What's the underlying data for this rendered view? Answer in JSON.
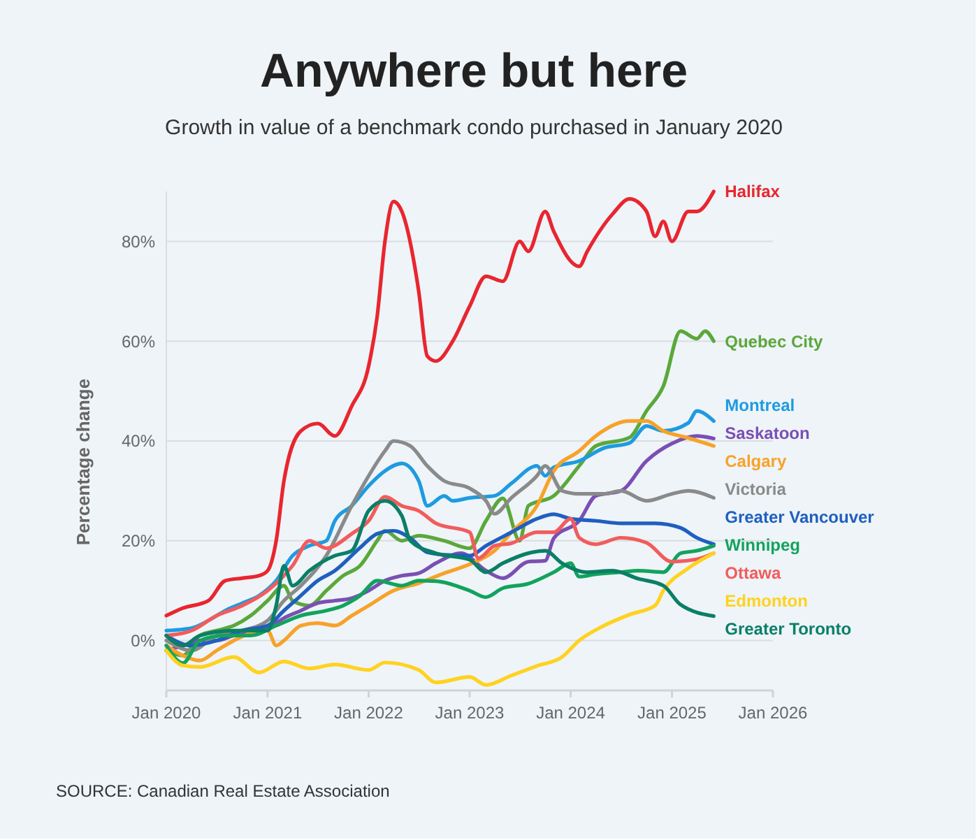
{
  "chart_data": {
    "type": "line",
    "title": "Anywhere but here",
    "subtitle": "Growth in value of a benchmark condo purchased in January 2020",
    "ylabel": "Percentage change",
    "annotations": [
      "SOURCE: Canadian Real Estate Association"
    ],
    "xlim": [
      "2020-01",
      "2026-01"
    ],
    "xticks": [
      {
        "value": "2020-01",
        "label": "Jan 2020"
      },
      {
        "value": "2021-01",
        "label": "Jan 2021"
      },
      {
        "value": "2022-01",
        "label": "Jan 2022"
      },
      {
        "value": "2023-01",
        "label": "Jan 2023"
      },
      {
        "value": "2024-01",
        "label": "Jan 2024"
      },
      {
        "value": "2025-01",
        "label": "Jan 2025"
      },
      {
        "value": "2026-01",
        "label": "Jan 2026"
      }
    ],
    "ylim": [
      -10,
      90
    ],
    "yticks": [
      {
        "value": 0,
        "label": "0%"
      },
      {
        "value": 20,
        "label": "20%"
      },
      {
        "value": 40,
        "label": "40%"
      },
      {
        "value": 60,
        "label": "60%"
      },
      {
        "value": 80,
        "label": "80%"
      }
    ],
    "grid": "y",
    "marker": "none",
    "line_style": "solid",
    "series": [
      {
        "name": "Halifax",
        "color": "#e8262f",
        "x": [
          "2020-01",
          "2020-03",
          "2020-06",
          "2020-08",
          "2020-10",
          "2020-12",
          "2021-01",
          "2021-02",
          "2021-03",
          "2021-05",
          "2021-07",
          "2021-09",
          "2021-11",
          "2022-01",
          "2022-02",
          "2022-03",
          "2022-04",
          "2022-05",
          "2022-07",
          "2022-08",
          "2022-09",
          "2022-11",
          "2023-01",
          "2023-03",
          "2023-05",
          "2023-07",
          "2023-08",
          "2023-10",
          "2023-11",
          "2024-02",
          "2024-03",
          "2024-06",
          "2024-08",
          "2024-10",
          "2024-11",
          "2024-12",
          "2025-01",
          "2025-03",
          "2025-04",
          "2025-06"
        ],
        "values": [
          5,
          6.5,
          8,
          12,
          12.5,
          13,
          14,
          20,
          32,
          42,
          43.5,
          41,
          47,
          55,
          65,
          80,
          88,
          86,
          70,
          57,
          56,
          60,
          67,
          73,
          72,
          80,
          78,
          86,
          82,
          75,
          78,
          85.5,
          88.5,
          86,
          81,
          84,
          80,
          86,
          86,
          90
        ]
      },
      {
        "name": "Quebec City",
        "color": "#5ba83a",
        "x": [
          "2020-01",
          "2020-03",
          "2020-05",
          "2020-07",
          "2020-09",
          "2020-11",
          "2021-01",
          "2021-03",
          "2021-04",
          "2021-06",
          "2021-08",
          "2021-10",
          "2021-12",
          "2022-02",
          "2022-03",
          "2022-05",
          "2022-07",
          "2022-10",
          "2023-01",
          "2023-03",
          "2023-05",
          "2023-07",
          "2023-08",
          "2023-11",
          "2024-02",
          "2024-04",
          "2024-08",
          "2024-10",
          "2024-12",
          "2025-02",
          "2025-04",
          "2025-05",
          "2025-06"
        ],
        "values": [
          -2,
          -3,
          1,
          2,
          3,
          5,
          8,
          11,
          8,
          7,
          10,
          13,
          15,
          20,
          22,
          20,
          21,
          20,
          18.5,
          24,
          28.5,
          20,
          27,
          29,
          35,
          39,
          40.7,
          46,
          51,
          62,
          60.5,
          62,
          60
        ]
      },
      {
        "name": "Montreal",
        "color": "#1e9be0",
        "x": [
          "2020-01",
          "2020-04",
          "2020-06",
          "2020-08",
          "2020-10",
          "2020-12",
          "2021-02",
          "2021-04",
          "2021-06",
          "2021-08",
          "2021-09",
          "2021-11",
          "2022-01",
          "2022-03",
          "2022-05",
          "2022-07",
          "2022-08",
          "2022-10",
          "2022-11",
          "2023-01",
          "2023-04",
          "2023-06",
          "2023-09",
          "2023-10",
          "2023-11",
          "2024-02",
          "2024-05",
          "2024-08",
          "2024-10",
          "2024-12",
          "2025-03",
          "2025-04",
          "2025-06"
        ],
        "values": [
          2,
          2.5,
          4,
          6,
          7.5,
          9,
          12,
          17,
          19,
          20,
          24,
          27,
          31,
          34,
          35.5,
          32,
          27,
          29,
          28,
          28.6,
          29,
          31.5,
          35,
          33,
          34.7,
          36,
          38.6,
          39.6,
          43,
          42,
          43.6,
          46,
          44
        ]
      },
      {
        "name": "Saskatoon",
        "color": "#7b4fb3",
        "x": [
          "2020-01",
          "2020-03",
          "2020-05",
          "2020-07",
          "2020-09",
          "2020-11",
          "2021-01",
          "2021-03",
          "2021-05",
          "2021-07",
          "2021-09",
          "2021-11",
          "2022-01",
          "2022-03",
          "2022-05",
          "2022-07",
          "2022-09",
          "2022-12",
          "2023-03",
          "2023-05",
          "2023-08",
          "2023-10",
          "2023-11",
          "2024-02",
          "2024-04",
          "2024-07",
          "2024-10",
          "2025-01",
          "2025-04",
          "2025-06"
        ],
        "values": [
          -2,
          -1,
          0,
          0,
          1,
          1.5,
          2.5,
          4.5,
          6,
          7.5,
          8,
          8.5,
          10,
          12,
          13,
          13.5,
          15.5,
          17.5,
          14,
          12.5,
          15.8,
          16,
          20.5,
          24,
          29,
          30,
          36,
          39.5,
          41,
          40.5
        ]
      },
      {
        "name": "Calgary",
        "color": "#f7a229",
        "x": [
          "2020-01",
          "2020-03",
          "2020-05",
          "2020-07",
          "2020-09",
          "2020-11",
          "2021-01",
          "2021-02",
          "2021-03",
          "2021-05",
          "2021-07",
          "2021-09",
          "2021-11",
          "2022-01",
          "2022-04",
          "2022-07",
          "2022-10",
          "2023-01",
          "2023-04",
          "2023-06",
          "2023-09",
          "2023-11",
          "2024-02",
          "2024-04",
          "2024-08",
          "2024-10",
          "2024-12",
          "2025-03",
          "2025-06"
        ],
        "values": [
          -1,
          -3,
          -4,
          -2,
          0,
          1.5,
          2,
          -1,
          0,
          3,
          3.5,
          3,
          5,
          7,
          10,
          11.5,
          13.5,
          15.3,
          18,
          21.7,
          27,
          34,
          38,
          41,
          44,
          44,
          42,
          40.6,
          39
        ]
      },
      {
        "name": "Victoria",
        "color": "#8a8a8a",
        "x": [
          "2020-01",
          "2020-04",
          "2020-07",
          "2020-10",
          "2021-01",
          "2021-03",
          "2021-05",
          "2021-08",
          "2021-11",
          "2022-01",
          "2022-03",
          "2022-04",
          "2022-06",
          "2022-08",
          "2022-10",
          "2023-01",
          "2023-03",
          "2023-04",
          "2023-06",
          "2023-09",
          "2023-10",
          "2023-12",
          "2024-02",
          "2024-05",
          "2024-07",
          "2024-10",
          "2025-01",
          "2025-03",
          "2025-06"
        ],
        "values": [
          0,
          -2,
          1,
          2,
          4,
          8,
          11,
          17,
          27,
          33,
          38,
          40,
          39,
          35,
          32,
          30.5,
          28,
          25.4,
          28.6,
          33,
          35,
          30,
          29.4,
          29.4,
          30,
          28,
          29.4,
          30,
          28.6
        ]
      },
      {
        "name": "Greater Vancouver",
        "color": "#1f5fbf",
        "x": [
          "2020-01",
          "2020-04",
          "2020-07",
          "2020-10",
          "2021-01",
          "2021-03",
          "2021-05",
          "2021-07",
          "2021-09",
          "2021-12",
          "2022-02",
          "2022-04",
          "2022-06",
          "2022-08",
          "2022-10",
          "2023-01",
          "2023-03",
          "2023-06",
          "2023-09",
          "2023-11",
          "2024-01",
          "2024-04",
          "2024-07",
          "2024-11",
          "2025-02",
          "2025-04",
          "2025-06"
        ],
        "values": [
          1,
          -1,
          0,
          2,
          3,
          6,
          9,
          12,
          14,
          18.6,
          21.4,
          22,
          20.5,
          17.7,
          17.2,
          17,
          19,
          21.7,
          24.4,
          25.3,
          24.4,
          24,
          23.5,
          23.5,
          22.6,
          20.6,
          19.3
        ]
      },
      {
        "name": "Winnipeg",
        "color": "#12a35c",
        "x": [
          "2020-01",
          "2020-03",
          "2020-05",
          "2020-08",
          "2020-11",
          "2021-02",
          "2021-05",
          "2021-08",
          "2021-10",
          "2021-12",
          "2022-02",
          "2022-05",
          "2022-07",
          "2022-09",
          "2023-01",
          "2023-03",
          "2023-05",
          "2023-08",
          "2023-11",
          "2024-01",
          "2024-02",
          "2024-04",
          "2024-07",
          "2024-09",
          "2024-12",
          "2025-02",
          "2025-04",
          "2025-06"
        ],
        "values": [
          -1,
          -4.5,
          0,
          1,
          1,
          3,
          5,
          6,
          7,
          9,
          12,
          11,
          12,
          11.9,
          10,
          8.7,
          10.5,
          11.4,
          13.7,
          15.5,
          12.8,
          13.3,
          13.7,
          14,
          13.7,
          17.5,
          18,
          19
        ]
      },
      {
        "name": "Ottawa",
        "color": "#f25c5c",
        "x": [
          "2020-01",
          "2020-04",
          "2020-07",
          "2020-10",
          "2021-01",
          "2021-04",
          "2021-06",
          "2021-08",
          "2021-11",
          "2022-01",
          "2022-03",
          "2022-05",
          "2022-07",
          "2022-09",
          "2023-01",
          "2023-02",
          "2023-04",
          "2023-06",
          "2023-09",
          "2023-11",
          "2024-01",
          "2024-02",
          "2024-04",
          "2024-07",
          "2024-10",
          "2025-01",
          "2025-04",
          "2025-06"
        ],
        "values": [
          1,
          2,
          5,
          7,
          10,
          15,
          20,
          18.5,
          21.4,
          24,
          28.8,
          27,
          26,
          23.5,
          21.7,
          16.5,
          19,
          19.5,
          21.7,
          21.7,
          24.4,
          20.6,
          19.3,
          20.6,
          19.6,
          15.8,
          16.3,
          17.5
        ]
      },
      {
        "name": "Edmonton",
        "color": "#ffd21f",
        "x": [
          "2020-01",
          "2020-03",
          "2020-05",
          "2020-09",
          "2020-12",
          "2021-03",
          "2021-06",
          "2021-09",
          "2022-01",
          "2022-03",
          "2022-07",
          "2022-09",
          "2023-01",
          "2023-03",
          "2023-06",
          "2023-09",
          "2023-12",
          "2024-02",
          "2024-05",
          "2024-08",
          "2024-11",
          "2024-12",
          "2025-03",
          "2025-06"
        ],
        "values": [
          -2,
          -5,
          -5.3,
          -3.3,
          -6.4,
          -4.2,
          -5.6,
          -4.8,
          -5.9,
          -4.4,
          -5.9,
          -8.4,
          -7.3,
          -8.9,
          -7,
          -5.1,
          -3.3,
          0,
          3,
          5.2,
          7,
          10,
          14.5,
          17.5
        ]
      },
      {
        "name": "Greater Toronto",
        "color": "#0a7f66",
        "x": [
          "2020-01",
          "2020-03",
          "2020-05",
          "2020-09",
          "2021-01",
          "2021-02",
          "2021-03",
          "2021-04",
          "2021-06",
          "2021-09",
          "2021-11",
          "2022-01",
          "2022-03",
          "2022-05",
          "2022-06",
          "2022-09",
          "2023-01",
          "2023-03",
          "2023-05",
          "2023-08",
          "2023-10",
          "2023-12",
          "2024-03",
          "2024-06",
          "2024-09",
          "2024-12",
          "2025-02",
          "2025-06"
        ],
        "values": [
          1,
          -1,
          1,
          2,
          2,
          7,
          15,
          11,
          14,
          17,
          18,
          26,
          28,
          25,
          20,
          17.5,
          16.2,
          13.7,
          15.5,
          17.5,
          18,
          15.5,
          13.7,
          14,
          12.4,
          11,
          7.2,
          4.9
        ]
      }
    ]
  }
}
